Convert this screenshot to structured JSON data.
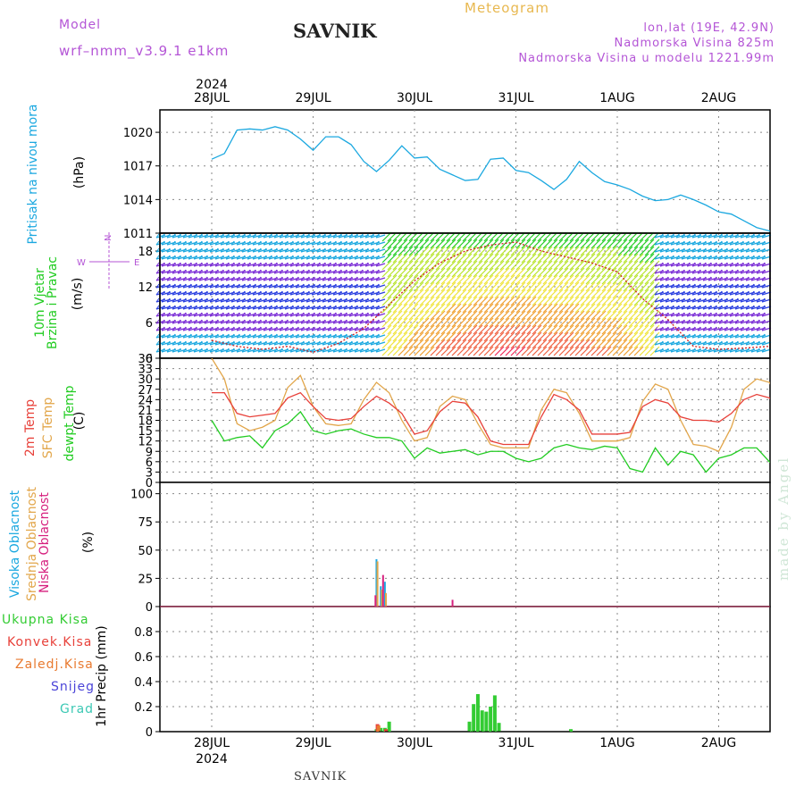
{
  "header": {
    "title": "Meteogram",
    "station": "SAVNIK",
    "model_label": "Model",
    "model_name": "wrf–nmm_v3.9.1 e1km",
    "info": [
      "lon,lat (19E, 42.9N)",
      "Nadmorska Visina 825m",
      "Nadmorska Visina u modelu 1221.99m"
    ]
  },
  "footer": {
    "station": "SAVNIK",
    "credit": "made by Angel"
  },
  "colors": {
    "pressure": "#1ba8e0",
    "t2m": "#e8413a",
    "tsfc": "#e2a64a",
    "dew": "#22cc22",
    "cloud_high": "#1ba8e0",
    "cloud_mid": "#e2a64a",
    "cloud_low": "#d6207e",
    "precip_total": "#33cc33",
    "precip_conv": "#e8413a",
    "precip_frozen": "#e87a30",
    "snow": "#4b44d8",
    "graupel": "#3cc8b4",
    "header": "#b455d6"
  },
  "chart_data": [
    {
      "type": "line",
      "panel": "pressure",
      "title": "",
      "ylabel_lines": [
        "Pritisak na nivou mora",
        "(hPa)"
      ],
      "x_day_labels": [
        "28JUL",
        "29JUL",
        "30JUL",
        "31JUL",
        "1AUG",
        "2AUG"
      ],
      "x_year_label": "2024",
      "x_range_days": [
        0,
        6
      ],
      "ylim": [
        1011,
        1022
      ],
      "yticks": [
        1011,
        1014,
        1017,
        1020
      ],
      "grid": true,
      "series": [
        {
          "name": "Pritisak na nivou mora",
          "x": [
            0,
            0.125,
            0.25,
            0.375,
            0.5,
            0.625,
            0.75,
            0.875,
            1.0,
            1.125,
            1.25,
            1.375,
            1.5,
            1.625,
            1.75,
            1.875,
            2.0,
            2.125,
            2.25,
            2.375,
            2.5,
            2.625,
            2.75,
            2.875,
            3.0,
            3.125,
            3.25,
            3.375,
            3.5,
            3.625,
            3.75,
            3.875,
            4.0,
            4.125,
            4.25,
            4.375,
            4.5,
            4.625,
            4.75,
            4.875,
            5.0,
            5.125,
            5.25,
            5.375,
            5.5,
            5.625,
            5.75,
            5.875,
            6.0
          ],
          "values": [
            1017.6,
            1018.1,
            1020.2,
            1020.3,
            1020.2,
            1020.5,
            1020.2,
            1019.4,
            1018.4,
            1019.6,
            1019.6,
            1018.9,
            1017.4,
            1016.5,
            1017.5,
            1018.8,
            1017.7,
            1017.8,
            1016.7,
            1016.2,
            1015.7,
            1015.8,
            1017.6,
            1017.7,
            1016.6,
            1016.4,
            1015.7,
            1014.9,
            1015.8,
            1017.4,
            1016.4,
            1015.6,
            1015.3,
            1014.9,
            1014.3,
            1013.9,
            1014.0,
            1014.4,
            1014.0,
            1013.5,
            1012.9,
            1012.7,
            1012.1,
            1011.5,
            1011.2,
            1011.0,
            1010.9,
            1010.8,
            1010.7
          ]
        }
      ]
    },
    {
      "type": "line",
      "panel": "wind",
      "title": "",
      "ylabel_lines": [
        "10m Vjetar",
        "Brzina i Pravac",
        "(m/s)"
      ],
      "compass_label": "N",
      "compass_letters": [
        "W",
        "E",
        "S",
        "N"
      ],
      "ylim": [
        0,
        21
      ],
      "yticks": [
        0,
        6,
        12,
        18
      ],
      "grid": true,
      "series": [
        {
          "name": "Brzina",
          "x": [
            0,
            0.25,
            0.5,
            0.75,
            1.0,
            1.25,
            1.5,
            1.75,
            2.0,
            2.25,
            2.5,
            2.75,
            3.0,
            3.25,
            3.5,
            3.75,
            4.0,
            4.25,
            4.5,
            4.75,
            5.0,
            5.25,
            5.5,
            5.75,
            6.0
          ],
          "values": [
            3,
            2,
            1.5,
            2,
            1,
            2.5,
            5,
            9,
            13,
            16,
            18,
            19,
            19.5,
            18,
            17,
            16,
            14.5,
            10,
            6.5,
            2,
            1.5,
            1.7,
            2,
            1.8,
            2
          ]
        }
      ]
    },
    {
      "type": "line",
      "panel": "temperature",
      "title": "",
      "ylabel_lines": [
        "2m Temp",
        "SFC Temp",
        "dewpt Temp",
        "(C)"
      ],
      "ylim": [
        0,
        36
      ],
      "yticks": [
        0,
        3,
        6,
        9,
        12,
        15,
        18,
        21,
        24,
        27,
        30,
        33,
        36
      ],
      "grid": true,
      "series": [
        {
          "name": "2m Temp",
          "x": [
            0,
            0.125,
            0.25,
            0.375,
            0.5,
            0.625,
            0.75,
            0.875,
            1.0,
            1.125,
            1.25,
            1.375,
            1.5,
            1.625,
            1.75,
            1.875,
            2.0,
            2.125,
            2.25,
            2.375,
            2.5,
            2.625,
            2.75,
            2.875,
            3.0,
            3.125,
            3.25,
            3.375,
            3.5,
            3.625,
            3.75,
            3.875,
            4.0,
            4.125,
            4.25,
            4.375,
            4.5,
            4.625,
            4.75,
            4.875,
            5.0,
            5.125,
            5.25,
            5.375,
            5.5,
            5.625,
            5.75,
            5.875,
            6.0
          ],
          "values": [
            26,
            26,
            20,
            19,
            19.5,
            20,
            24.5,
            26,
            22,
            18.5,
            18,
            18.5,
            22,
            25,
            23,
            20,
            14,
            15,
            20.5,
            23.5,
            23,
            19,
            12,
            11,
            11,
            11,
            19,
            25.5,
            24,
            21,
            14,
            14,
            14,
            14.5,
            22,
            24,
            23,
            19,
            18,
            18,
            17.5,
            20,
            24,
            25.5,
            24.5,
            22,
            24,
            25,
            25
          ]
        },
        {
          "name": "SFC Temp",
          "x": [
            0,
            0.125,
            0.25,
            0.375,
            0.5,
            0.625,
            0.75,
            0.875,
            1.0,
            1.125,
            1.25,
            1.375,
            1.5,
            1.625,
            1.75,
            1.875,
            2.0,
            2.125,
            2.25,
            2.375,
            2.5,
            2.625,
            2.75,
            2.875,
            3.0,
            3.125,
            3.25,
            3.375,
            3.5,
            3.625,
            3.75,
            3.875,
            4.0,
            4.125,
            4.25,
            4.375,
            4.5,
            4.625,
            4.75,
            4.875,
            5.0,
            5.125,
            5.25,
            5.375,
            5.5,
            5.625,
            5.75,
            5.875,
            6.0
          ],
          "values": [
            36,
            30,
            17,
            15,
            16,
            18,
            27.5,
            31,
            22,
            17,
            16.5,
            17,
            24,
            29,
            26,
            18,
            12,
            13,
            22,
            25,
            24,
            17,
            11,
            10,
            10,
            10,
            21,
            27,
            26,
            20,
            12,
            12,
            12,
            13,
            23.5,
            28.5,
            27,
            18,
            11,
            10.5,
            9,
            16,
            27,
            30,
            29,
            23,
            27,
            29.5,
            30
          ]
        },
        {
          "name": "dewpt Temp",
          "x": [
            0,
            0.125,
            0.25,
            0.375,
            0.5,
            0.625,
            0.75,
            0.875,
            1.0,
            1.125,
            1.25,
            1.375,
            1.5,
            1.625,
            1.75,
            1.875,
            2.0,
            2.125,
            2.25,
            2.375,
            2.5,
            2.625,
            2.75,
            2.875,
            3.0,
            3.125,
            3.25,
            3.375,
            3.5,
            3.625,
            3.75,
            3.875,
            4.0,
            4.125,
            4.25,
            4.375,
            4.5,
            4.625,
            4.75,
            4.875,
            5.0,
            5.125,
            5.25,
            5.375,
            5.5,
            5.625,
            5.75,
            5.875,
            6.0
          ],
          "values": [
            18,
            12,
            13,
            13.5,
            10,
            15,
            17,
            20.5,
            15,
            14,
            15,
            15.5,
            14,
            13,
            13,
            12,
            7,
            10,
            8.5,
            9,
            9.5,
            8,
            9,
            9,
            7,
            6,
            7,
            10,
            11,
            10,
            9.5,
            10.5,
            10,
            4,
            3,
            10,
            5,
            9,
            8,
            3,
            7,
            8,
            10,
            10,
            6,
            4,
            12,
            10,
            14
          ]
        }
      ]
    },
    {
      "type": "bar",
      "panel": "cloud",
      "title": "",
      "ylabel_lines": [
        "Visoka Oblacnost",
        "Srednja Oblacnost",
        "Niska Oblacnost",
        "(%)"
      ],
      "ylim": [
        0,
        110
      ],
      "yticks": [
        0,
        25,
        50,
        75,
        100
      ],
      "grid": true,
      "series": [
        {
          "name": "Visoka Oblacnost",
          "x": [
            1.625,
            1.667,
            1.708
          ],
          "values": [
            42,
            18,
            22
          ]
        },
        {
          "name": "Srednja Oblacnost",
          "x": [
            1.635,
            1.677,
            1.718
          ],
          "values": [
            40,
            15,
            12
          ]
        },
        {
          "name": "Niska Oblacnost",
          "x": [
            1.615,
            1.69,
            2.375
          ],
          "values": [
            10,
            28,
            6
          ]
        }
      ]
    },
    {
      "type": "bar",
      "panel": "precip",
      "title": "",
      "ylabel_lines": [
        "1hr Precip (mm)"
      ],
      "legend_entries": [
        "Ukupna Kisa",
        "Konvek.Kisa",
        "Zaledj.Kisa",
        "Snijeg",
        "Grad"
      ],
      "ylim": [
        0,
        1.0
      ],
      "yticks": [
        0,
        0.2,
        0.4,
        0.6,
        0.8
      ],
      "grid": true,
      "series": [
        {
          "name": "Ukupna Kisa",
          "x": [
            1.625,
            1.667,
            1.708,
            1.75,
            2.542,
            2.583,
            2.625,
            2.667,
            2.708,
            2.75,
            2.792,
            2.833,
            3.542
          ],
          "values": [
            0.02,
            0.03,
            0.03,
            0.08,
            0.08,
            0.22,
            0.3,
            0.17,
            0.16,
            0.2,
            0.29,
            0.07,
            0.02
          ]
        },
        {
          "name": "Konvek.Kisa",
          "x": [
            1.635,
            1.718
          ],
          "values": [
            0.06,
            0.02
          ]
        },
        {
          "name": "Zaledj.Kisa",
          "x": [
            1.645
          ],
          "values": [
            0.05
          ]
        }
      ]
    }
  ]
}
